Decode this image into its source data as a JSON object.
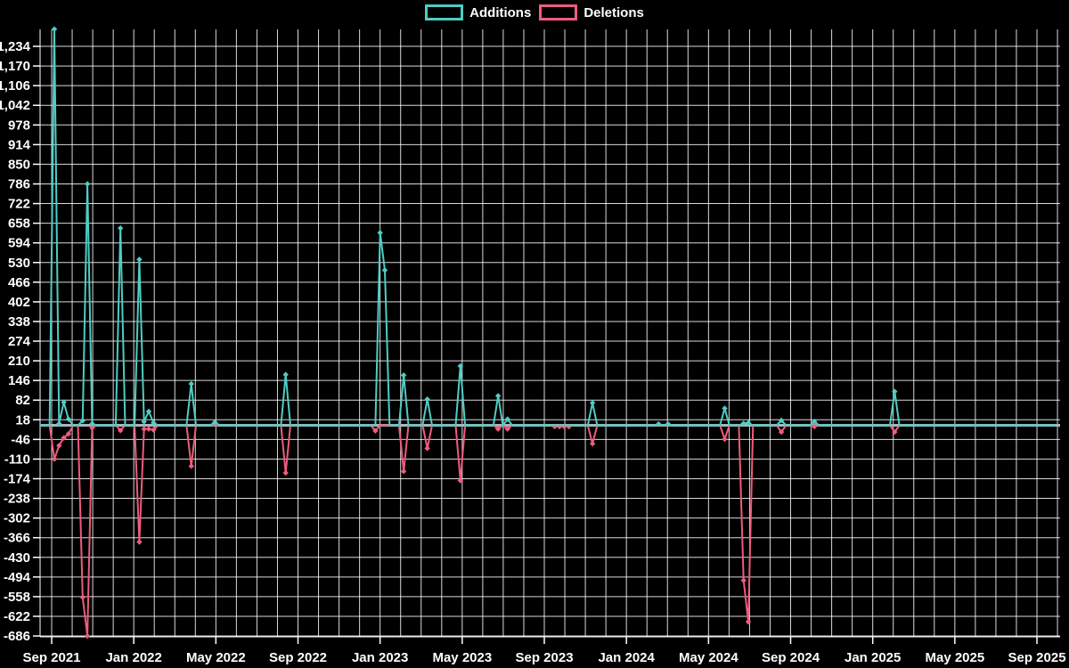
{
  "legend": {
    "additions_label": "Additions",
    "deletions_label": "Deletions"
  },
  "colors": {
    "background": "#000000",
    "additions": "#4ecdc4",
    "deletions": "#ee5c7c",
    "zero_baseline": "#a6b8bd",
    "grid": "#ffffff",
    "text": "#ffffff"
  },
  "chart_data": {
    "type": "line",
    "title": "",
    "xlabel": "",
    "ylabel": "",
    "x_axis": {
      "tick_labels": [
        "Sep 2021",
        "Jan 2022",
        "May 2022",
        "Sep 2022",
        "Jan 2023",
        "May 2023",
        "Sep 2023",
        "Jan 2024",
        "May 2024",
        "Sep 2024",
        "Jan 2025",
        "May 2025",
        "Sep 2025"
      ],
      "gridlines": "monthly",
      "data_start_week": "2021-08-15",
      "data_end_week": "2025-09-28"
    },
    "y_axis": {
      "min": -686,
      "max": 1290,
      "tick_step": 64,
      "ticks": [
        1234,
        1170,
        1106,
        1042,
        978,
        914,
        850,
        786,
        722,
        658,
        594,
        530,
        466,
        402,
        338,
        274,
        210,
        146,
        82,
        18,
        -46,
        -110,
        -174,
        -238,
        -302,
        -366,
        -430,
        -494,
        -558,
        -622,
        -686
      ],
      "tick_labels": [
        "1,234",
        "1,170",
        "1,106",
        "1,042",
        "978",
        "914",
        "850",
        "786",
        "722",
        "658",
        "594",
        "530",
        "466",
        "402",
        "338",
        "274",
        "210",
        "146",
        "82",
        "18",
        "-46",
        "-110",
        "-174",
        "-238",
        "-302",
        "-366",
        "-430",
        "-494",
        "-558",
        "-622",
        "-686"
      ]
    },
    "grid": true,
    "legend_position": "top-center",
    "marker": "diamond-on-nonzero-weeks",
    "weeks_note": "weekly points; all weeks not listed in events have value 0",
    "series": [
      {
        "name": "Additions",
        "color_key": "additions",
        "events": [
          [
            "2021-09-05",
            1290
          ],
          [
            "2021-09-12",
            5
          ],
          [
            "2021-09-19",
            75
          ],
          [
            "2021-09-26",
            20
          ],
          [
            "2021-10-17",
            15
          ],
          [
            "2021-10-24",
            786
          ],
          [
            "2021-10-31",
            5
          ],
          [
            "2021-12-12",
            642
          ],
          [
            "2022-01-09",
            540
          ],
          [
            "2022-01-16",
            12
          ],
          [
            "2022-01-23",
            45
          ],
          [
            "2022-01-30",
            8
          ],
          [
            "2022-03-27",
            135
          ],
          [
            "2022-05-01",
            10
          ],
          [
            "2022-08-14",
            165
          ],
          [
            "2023-01-01",
            627
          ],
          [
            "2023-01-08",
            505
          ],
          [
            "2023-02-05",
            163
          ],
          [
            "2023-03-12",
            85
          ],
          [
            "2023-04-30",
            193
          ],
          [
            "2023-06-25",
            96
          ],
          [
            "2023-07-09",
            20
          ],
          [
            "2023-11-12",
            73
          ],
          [
            "2024-02-18",
            4
          ],
          [
            "2024-03-03",
            4
          ],
          [
            "2024-05-26",
            55
          ],
          [
            "2024-06-23",
            6
          ],
          [
            "2024-06-30",
            8
          ],
          [
            "2024-08-18",
            16
          ],
          [
            "2024-10-06",
            12
          ],
          [
            "2025-02-02",
            110
          ]
        ]
      },
      {
        "name": "Deletions",
        "color_key": "deletions",
        "events": [
          [
            "2021-09-05",
            -110
          ],
          [
            "2021-09-12",
            -66
          ],
          [
            "2021-09-19",
            -41
          ],
          [
            "2021-09-26",
            -28
          ],
          [
            "2021-10-17",
            -560
          ],
          [
            "2021-10-24",
            -686
          ],
          [
            "2021-10-31",
            -8
          ],
          [
            "2021-12-12",
            -17
          ],
          [
            "2022-01-09",
            -380
          ],
          [
            "2022-01-16",
            -12
          ],
          [
            "2022-01-23",
            -12
          ],
          [
            "2022-01-30",
            -15
          ],
          [
            "2022-03-27",
            -133
          ],
          [
            "2022-08-14",
            -155
          ],
          [
            "2022-12-25",
            -18
          ],
          [
            "2023-02-05",
            -150
          ],
          [
            "2023-03-12",
            -75
          ],
          [
            "2023-04-30",
            -180
          ],
          [
            "2023-06-25",
            -12
          ],
          [
            "2023-07-09",
            -12
          ],
          [
            "2023-09-17",
            -4
          ],
          [
            "2023-09-24",
            -4
          ],
          [
            "2023-10-01",
            -4
          ],
          [
            "2023-10-08",
            -4
          ],
          [
            "2023-11-12",
            -60
          ],
          [
            "2024-05-26",
            -45
          ],
          [
            "2024-06-23",
            -505
          ],
          [
            "2024-06-30",
            -640
          ],
          [
            "2024-08-18",
            -22
          ],
          [
            "2024-10-06",
            -4
          ],
          [
            "2025-02-02",
            -22
          ]
        ]
      }
    ]
  }
}
